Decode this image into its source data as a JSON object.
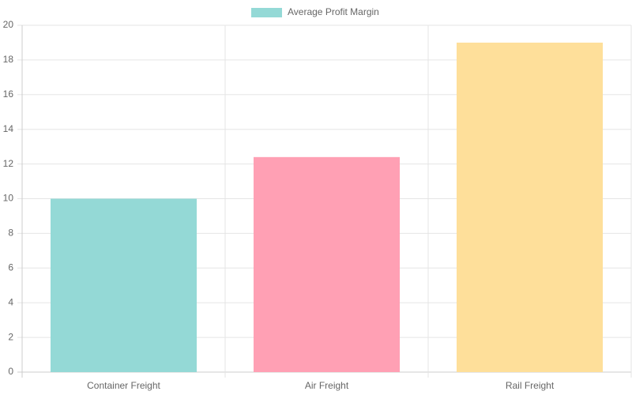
{
  "chart_data": {
    "type": "bar",
    "categories": [
      "Container Freight",
      "Air Freight",
      "Rail Freight"
    ],
    "series": [
      {
        "name": "Average Profit Margin",
        "color": "#94d9d6",
        "colors": [
          "#94d9d6",
          "#ffa0b4",
          "#fedf9a"
        ],
        "values": [
          10,
          12.4,
          19
        ]
      }
    ],
    "ylim": [
      0,
      20
    ],
    "yticks": [
      0,
      2,
      4,
      6,
      8,
      10,
      12,
      14,
      16,
      18,
      20
    ],
    "grid": true,
    "legend": "top"
  }
}
